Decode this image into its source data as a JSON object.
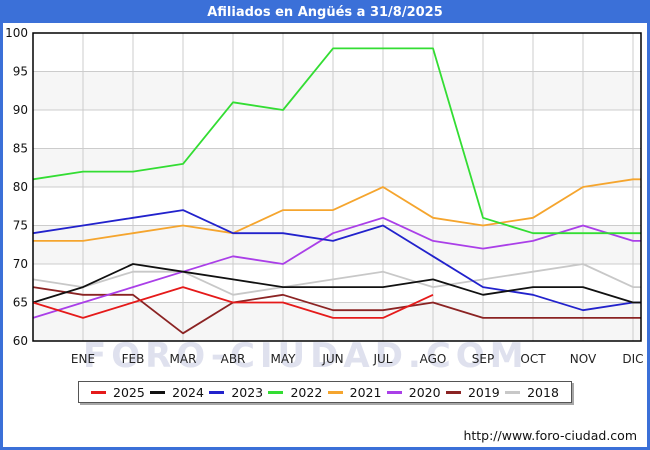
{
  "title": "Afiliados en Angüés a 31/8/2025",
  "watermark": "FORO-CIUDAD.COM",
  "footer": {
    "url": "http://www.foro-ciudad.com"
  },
  "colors": {
    "frame_blue": "#3b70d8",
    "grid": "#cccccc",
    "band": "#f6f6f6",
    "axis": "#000000"
  },
  "chart_data": {
    "type": "line",
    "title": "Afiliados en Angüés a 31/8/2025",
    "xlabel": "",
    "ylabel": "",
    "x_labels": [
      "ENE",
      "FEB",
      "MAR",
      "ABR",
      "MAY",
      "JUN",
      "JUL",
      "AGO",
      "SEP",
      "OCT",
      "NOV",
      "DIC"
    ],
    "ylim": [
      60,
      100
    ],
    "yticks": [
      60,
      65,
      70,
      75,
      80,
      85,
      90,
      95,
      100
    ],
    "grid": true,
    "legend_position": "bottom",
    "note": "Each series has an unlabeled starting point on the left axis edge, then one point per month. 2025 ends in AGO.",
    "series": [
      {
        "name": "2025",
        "color": "#e51a1a",
        "values": [
          65,
          63,
          65,
          67,
          65,
          65,
          63,
          63,
          66
        ]
      },
      {
        "name": "2024",
        "color": "#111111",
        "values": [
          65,
          67,
          70,
          69,
          68,
          67,
          67,
          67,
          68,
          66,
          67,
          67,
          65
        ]
      },
      {
        "name": "2023",
        "color": "#2222cc",
        "values": [
          74,
          75,
          76,
          77,
          74,
          74,
          73,
          75,
          71,
          67,
          66,
          64,
          65
        ]
      },
      {
        "name": "2022",
        "color": "#33dd33",
        "values": [
          81,
          82,
          82,
          83,
          91,
          90,
          98,
          98,
          98,
          76,
          74,
          74,
          74
        ]
      },
      {
        "name": "2021",
        "color": "#f5a52e",
        "values": [
          73,
          73,
          74,
          75,
          74,
          77,
          77,
          80,
          76,
          75,
          76,
          80,
          81
        ]
      },
      {
        "name": "2020",
        "color": "#aa3fe8",
        "values": [
          63,
          65,
          67,
          69,
          71,
          70,
          74,
          76,
          73,
          72,
          73,
          75,
          73
        ]
      },
      {
        "name": "2019",
        "color": "#8b2323",
        "values": [
          67,
          66,
          66,
          61,
          65,
          66,
          64,
          64,
          65,
          63,
          63,
          63,
          63
        ]
      },
      {
        "name": "2018",
        "color": "#c8c8c8",
        "values": [
          68,
          67,
          69,
          69,
          66,
          67,
          68,
          69,
          67,
          68,
          69,
          70,
          67
        ]
      }
    ]
  }
}
